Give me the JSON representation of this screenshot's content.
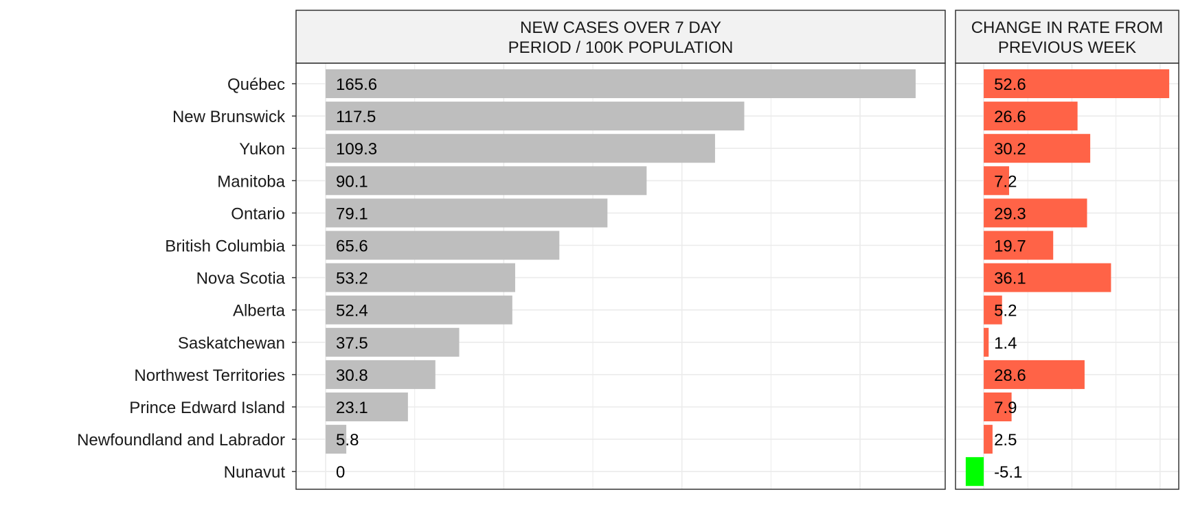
{
  "chart_data": {
    "type": "bar",
    "orientation": "horizontal",
    "categories": [
      "Québec",
      "New Brunswick",
      "Yukon",
      "Manitoba",
      "Ontario",
      "British Columbia",
      "Nova Scotia",
      "Alberta",
      "Saskatchewan",
      "Northwest Territories",
      "Prince Edward Island",
      "Newfoundland and Labrador",
      "Nunavut"
    ],
    "panels": [
      {
        "title_lines": [
          "NEW CASES OVER 7 DAY",
          "PERIOD / 100K POPULATION"
        ],
        "values": [
          165.6,
          117.5,
          109.3,
          90.1,
          79.1,
          65.6,
          53.2,
          52.4,
          37.5,
          30.8,
          23.1,
          5.8,
          0
        ],
        "labels": [
          "165.6",
          "117.5",
          "109.3",
          "90.1",
          "79.1",
          "65.6",
          "53.2",
          "52.4",
          "37.5",
          "30.8",
          "23.1",
          "5.8",
          "0"
        ],
        "xlim": [
          -8.3,
          173.9
        ],
        "gridlines": [
          0,
          50,
          100,
          150
        ],
        "bar_color": "#bebebe"
      },
      {
        "title_lines": [
          "CHANGE IN RATE FROM",
          "PREVIOUS WEEK"
        ],
        "values": [
          52.6,
          26.6,
          30.2,
          7.2,
          29.3,
          19.7,
          36.1,
          5.2,
          1.4,
          28.6,
          7.9,
          2.5,
          -5.1
        ],
        "labels": [
          "52.6",
          "26.6",
          "30.2",
          "7.2",
          "29.3",
          "19.7",
          "36.1",
          "5.2",
          "1.4",
          "28.6",
          "7.9",
          "2.5",
          "-5.1"
        ],
        "xlim": [
          -8.0,
          55.3
        ],
        "gridlines": [
          0,
          25,
          50
        ],
        "positive_color": "#ff6347",
        "negative_color": "#00ff00"
      }
    ],
    "x_tick_labels_shown": false,
    "grid": true,
    "legend": "none"
  }
}
